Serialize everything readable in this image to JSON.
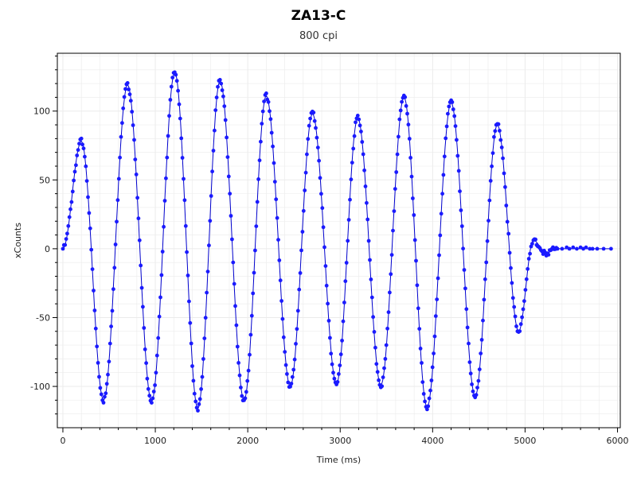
{
  "chart_data": {
    "type": "scatter",
    "title": "ZA13-C",
    "subtitle": "800 cpi",
    "xlabel": "Time (ms)",
    "ylabel": "xCounts",
    "xlim": [
      -60,
      6030
    ],
    "ylim": [
      -130,
      142
    ],
    "xticks": [
      0,
      1000,
      2000,
      3000,
      4000,
      5000,
      6000
    ],
    "yticks": [
      -100,
      -50,
      0,
      50,
      100
    ],
    "grid": true,
    "legend": "none",
    "colors": {
      "points": "#1a1aff",
      "line": "#0000cc",
      "grid": "#ebebeb",
      "axis": "#000000"
    },
    "extrema": {
      "x": [
        0,
        200,
        440,
        700,
        960,
        1210,
        1460,
        1700,
        1960,
        2200,
        2460,
        2700,
        2960,
        3190,
        3440,
        3690,
        3940,
        4200,
        4460,
        4700,
        4930,
        5090,
        5230,
        5350
      ],
      "y": [
        0,
        78,
        -110,
        119,
        -111,
        128,
        -116,
        122,
        -110,
        111,
        -100,
        98,
        -98,
        95,
        -99,
        110,
        -115,
        106,
        -107,
        90,
        -60,
        6,
        -3,
        0
      ]
    },
    "tail_points": [
      [
        5400,
        0
      ],
      [
        5450,
        1
      ],
      [
        5480,
        0
      ],
      [
        5520,
        1
      ],
      [
        5560,
        0
      ],
      [
        5600,
        1
      ],
      [
        5630,
        0
      ],
      [
        5660,
        1
      ],
      [
        5700,
        0
      ],
      [
        5730,
        0
      ],
      [
        5780,
        0
      ],
      [
        5850,
        0
      ],
      [
        5930,
        0
      ]
    ]
  }
}
